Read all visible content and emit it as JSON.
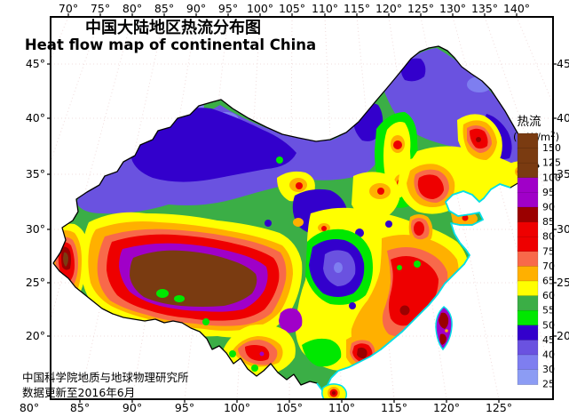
{
  "titles": {
    "zh": "中国大陆地区热流分布图",
    "en": "Heat flow map of continental China",
    "zh_color": "#F1477A",
    "en_color": "#E31450"
  },
  "credit": {
    "line1": "中国科学院地质与地球物理研究所",
    "line2": "数据更新至2016年6月"
  },
  "axes": {
    "top": {
      "labels": [
        "70°",
        "75°",
        "80°",
        "85°",
        "90°",
        "95°",
        "100°",
        "105°",
        "110°",
        "115°",
        "120°",
        "125°",
        "130°",
        "135°",
        "140°"
      ]
    },
    "bottom": {
      "labels": [
        "80°",
        "85°",
        "90°",
        "95°",
        "100°",
        "105°",
        "110°",
        "115°",
        "120°",
        "125°"
      ]
    },
    "left": {
      "labels": [
        "45°",
        "40°",
        "35°",
        "30°",
        "25°",
        "20°"
      ]
    },
    "right": {
      "labels": [
        "45°",
        "40°",
        "35°",
        "30°",
        "25°",
        "20°"
      ]
    }
  },
  "legend": {
    "title": "热流",
    "unit_main": "(mW/m",
    "unit_sup": "2",
    "unit_end": ")",
    "ticks": [
      "150",
      "125",
      "100",
      "95",
      "90",
      "85",
      "80",
      "75",
      "70",
      "65",
      "60",
      "55",
      "50",
      "45",
      "40",
      "30",
      "25"
    ],
    "band_colors": [
      "#7A3B11",
      "#7A3B11",
      "#7A3B11",
      "#A000C8",
      "#A000C8",
      "#9B0000",
      "#EE0000",
      "#EE0000",
      "#F8694A",
      "#FFB000",
      "#FFFF00",
      "#3BAE46",
      "#00E800",
      "#3300CC",
      "#6A52E0",
      "#7E7EF0",
      "#8C9CF4"
    ]
  },
  "map": {
    "land_base_color": "#3BAE46",
    "border_color": "#000000",
    "coast_color": "#00E0E8",
    "background_color": "#FFFFFF"
  }
}
